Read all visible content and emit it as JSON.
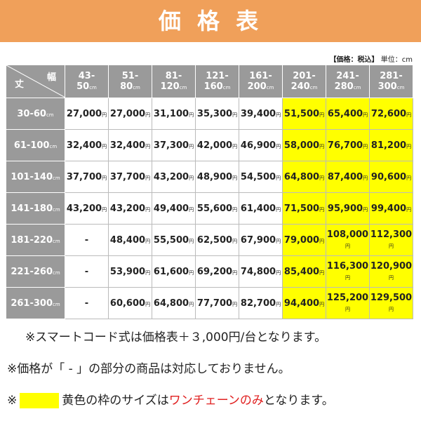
{
  "header": {
    "title": "価 格 表"
  },
  "note_top": {
    "label": "【価格：税込】",
    "unit_text": "単位：cm"
  },
  "table": {
    "corner": {
      "width": "幅",
      "height": "丈"
    },
    "size_unit": "cm",
    "price_unit": "円",
    "highlight_color": "#ffff00",
    "columns": [
      {
        "top": "43-",
        "bottom": "50",
        "highlight": false
      },
      {
        "top": "51-",
        "bottom": "80",
        "highlight": false
      },
      {
        "top": "81-",
        "bottom": "120",
        "highlight": false
      },
      {
        "top": "121-",
        "bottom": "160",
        "highlight": false
      },
      {
        "top": "161-",
        "bottom": "200",
        "highlight": false
      },
      {
        "top": "201-",
        "bottom": "240",
        "highlight": true
      },
      {
        "top": "241-",
        "bottom": "280",
        "highlight": true
      },
      {
        "top": "281-",
        "bottom": "300",
        "highlight": true
      }
    ],
    "rows": [
      {
        "label": "30-60",
        "prices": [
          "27,000",
          "27,000",
          "31,100",
          "35,300",
          "39,400",
          "51,500",
          "65,400",
          "72,600"
        ]
      },
      {
        "label": "61-100",
        "prices": [
          "32,400",
          "32,400",
          "37,300",
          "42,000",
          "46,900",
          "58,000",
          "76,700",
          "81,200"
        ]
      },
      {
        "label": "101-140",
        "prices": [
          "37,700",
          "37,700",
          "43,200",
          "48,900",
          "54,500",
          "64,800",
          "87,400",
          "90,600"
        ]
      },
      {
        "label": "141-180",
        "prices": [
          "43,200",
          "43,200",
          "49,400",
          "55,600",
          "61,400",
          "71,500",
          "95,900",
          "99,400"
        ]
      },
      {
        "label": "181-220",
        "prices": [
          "-",
          "48,400",
          "55,500",
          "62,500",
          "67,900",
          "79,000",
          "108,000",
          "112,300"
        ]
      },
      {
        "label": "221-260",
        "prices": [
          "-",
          "53,900",
          "61,600",
          "69,200",
          "74,800",
          "85,400",
          "116,300",
          "120,900"
        ]
      },
      {
        "label": "261-300",
        "prices": [
          "-",
          "60,600",
          "64,800",
          "77,700",
          "82,700",
          "94,400",
          "125,200",
          "129,500"
        ]
      }
    ]
  },
  "notes": [
    {
      "text": "※スマートコード式は価格表＋３,000円/台となります。"
    },
    {
      "text": "※価格が「 - 」の部分の商品は対応しておりません。"
    },
    {
      "mark": "※",
      "before": "黄色の枠のサイズは",
      "emphasis": "ワンチェーンのみ",
      "after": "となります。"
    }
  ]
}
